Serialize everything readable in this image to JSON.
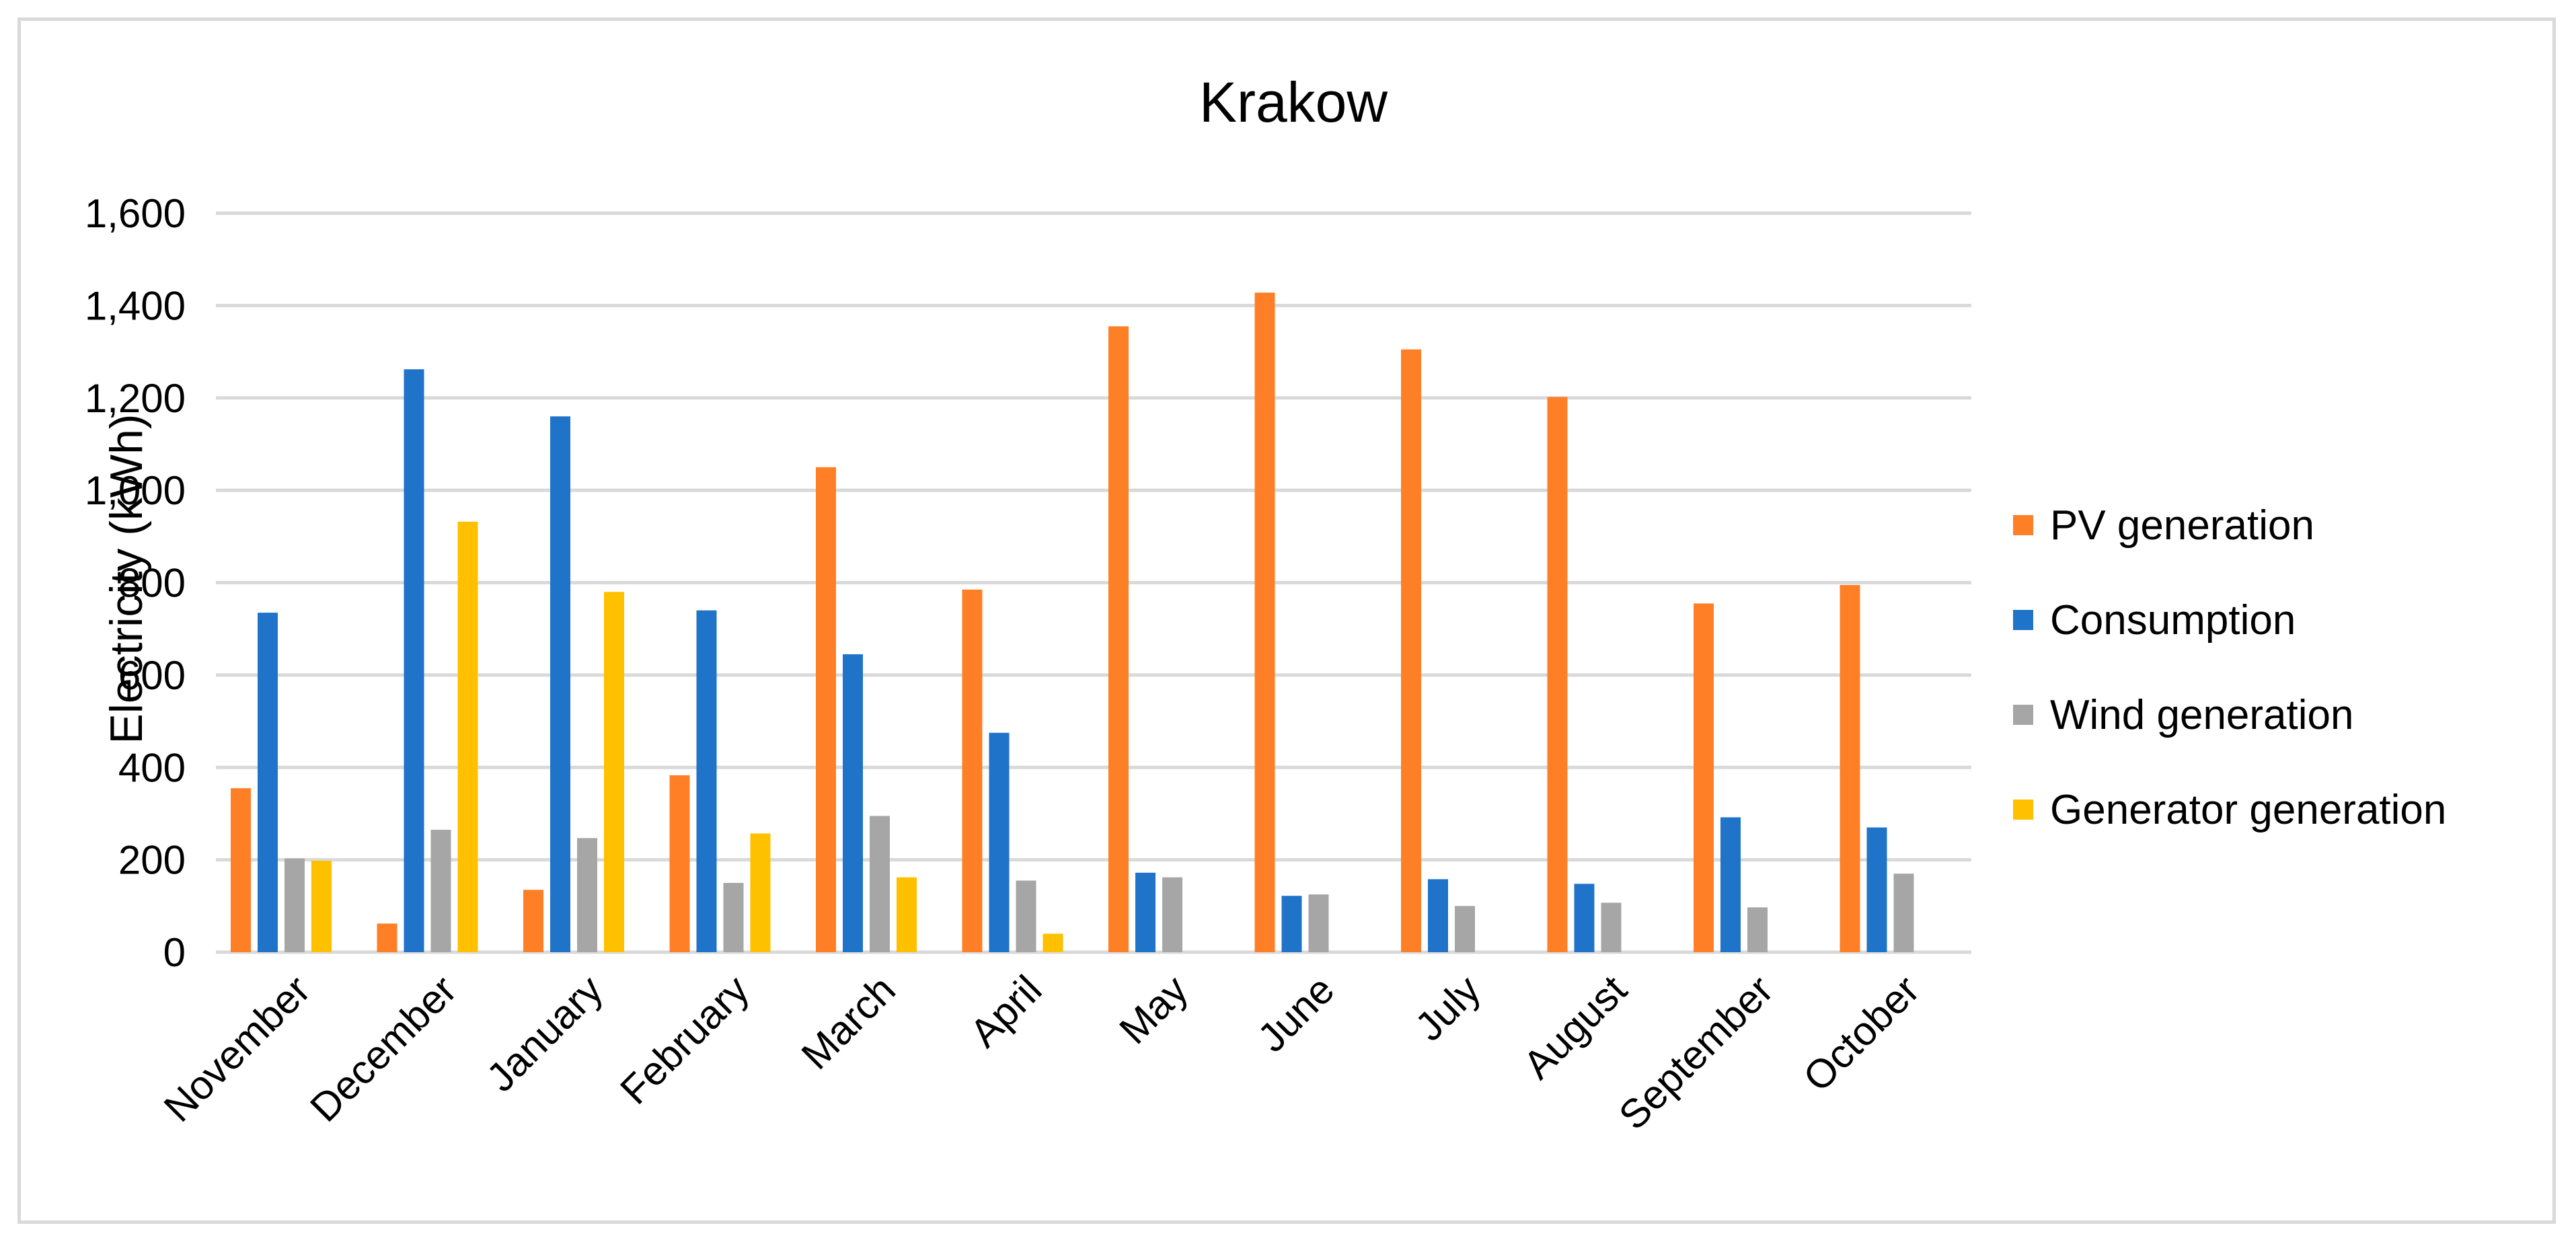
{
  "chart_data": {
    "type": "bar",
    "title": "Krakow",
    "xlabel": "",
    "ylabel": "Electricity (kWh)",
    "ylim": [
      0,
      1600
    ],
    "yticks": [
      0,
      200,
      400,
      600,
      800,
      1000,
      1200,
      1400,
      1600
    ],
    "ytick_labels": [
      "0",
      "200",
      "400",
      "600",
      "800",
      "1,000",
      "1,200",
      "1,400",
      "1,600"
    ],
    "grid": true,
    "legend_position": "right",
    "categories": [
      "November",
      "December",
      "January",
      "February",
      "March",
      "April",
      "May",
      "June",
      "July",
      "August",
      "September",
      "October"
    ],
    "series": [
      {
        "name": "PV generation",
        "color": "#ff7f27",
        "values": [
          355,
          62,
          135,
          383,
          1050,
          785,
          1355,
          1428,
          1305,
          1202,
          755,
          795
        ]
      },
      {
        "name": "Consumption",
        "color": "#1f73c9",
        "values": [
          735,
          1262,
          1160,
          740,
          645,
          475,
          172,
          122,
          158,
          148,
          292,
          270
        ]
      },
      {
        "name": "Wind generation",
        "color": "#a6a6a6",
        "values": [
          203,
          265,
          247,
          150,
          295,
          155,
          162,
          125,
          100,
          107,
          97,
          170
        ]
      },
      {
        "name": "Generator generation",
        "color": "#ffc000",
        "values": [
          198,
          932,
          780,
          257,
          162,
          40,
          0,
          0,
          0,
          0,
          0,
          0
        ]
      }
    ]
  }
}
